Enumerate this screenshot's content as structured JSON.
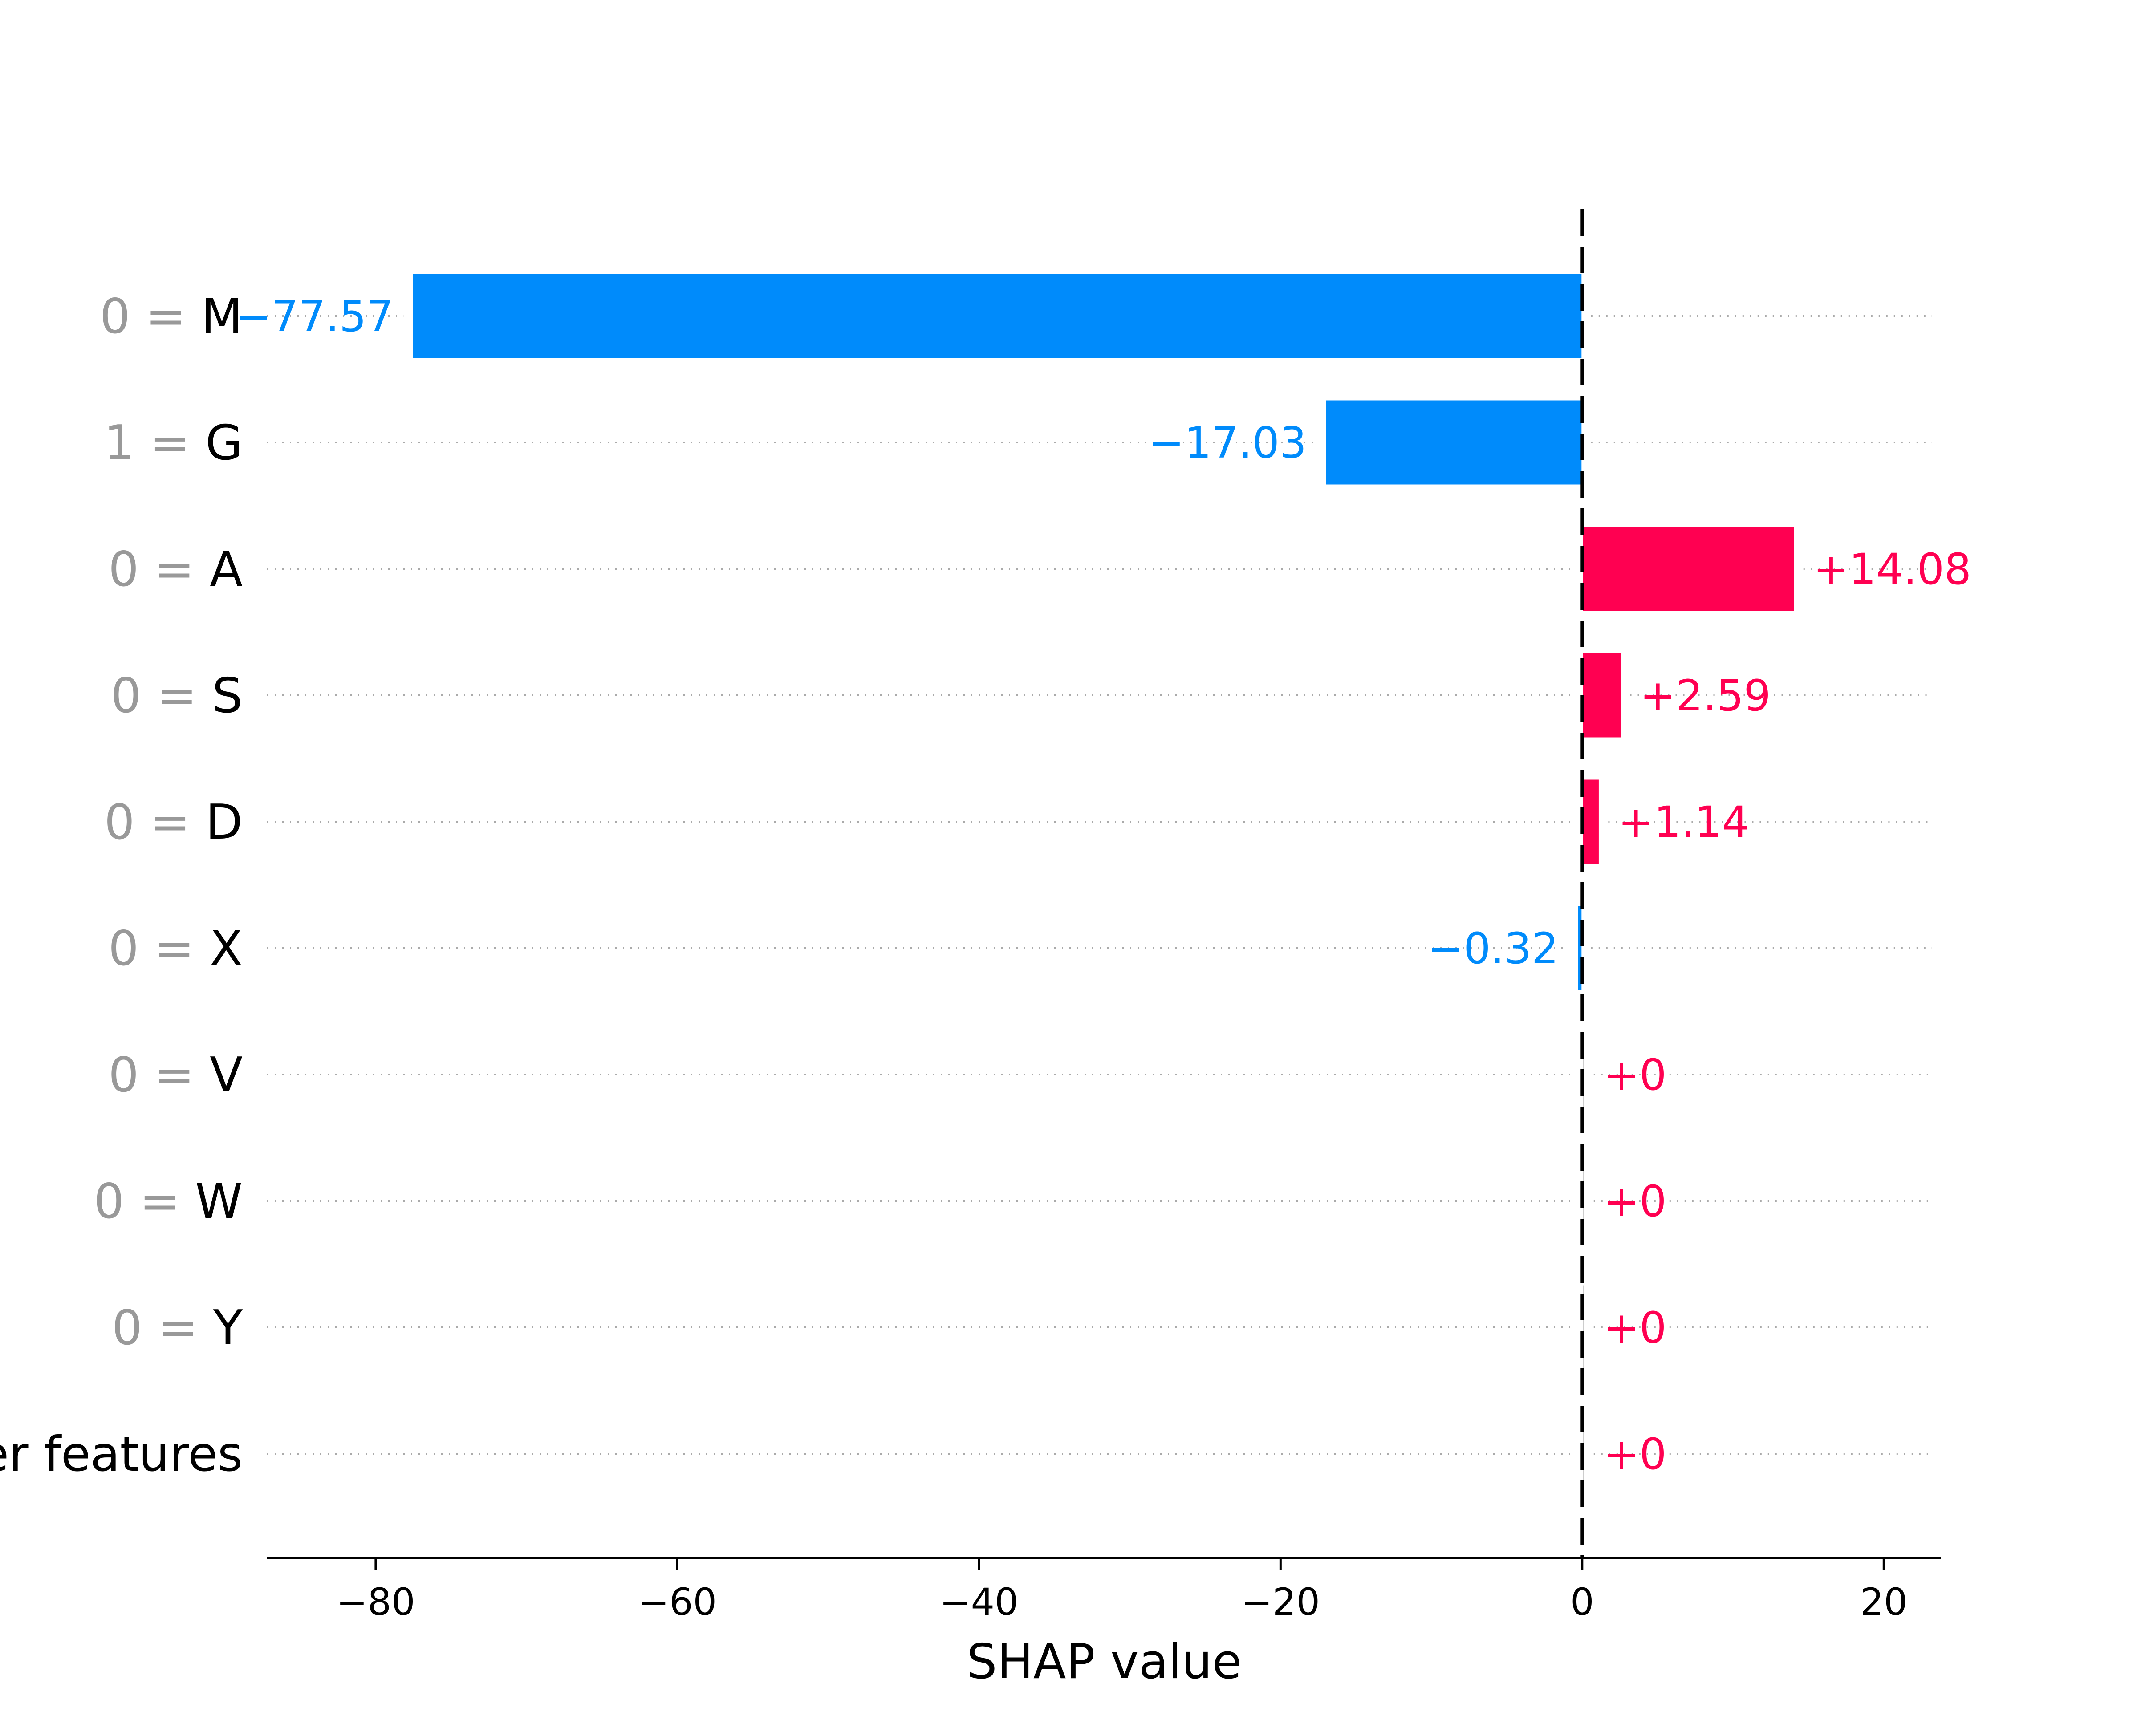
{
  "chart_data": {
    "type": "bar",
    "xlabel": "SHAP value",
    "xlim": [
      -87.2,
      23.8
    ],
    "xticks": [
      -80,
      -60,
      -40,
      -20,
      0,
      20
    ],
    "xtick_labels": [
      "−80",
      "−60",
      "−40",
      "−20",
      "0",
      "20"
    ],
    "baseline": 0,
    "grid": "dotted horizontal row guides",
    "colors": {
      "positive": "#ff0051",
      "negative": "#008bfb",
      "zero_bar": "#cccccc",
      "feature_value": "#999999"
    },
    "rows": [
      {
        "feature_value": "0",
        "feature": "M",
        "value": -77.57,
        "label": "−77.57"
      },
      {
        "feature_value": "1",
        "feature": "G",
        "value": -17.03,
        "label": "−17.03"
      },
      {
        "feature_value": "0",
        "feature": "A",
        "value": 14.08,
        "label": "+14.08"
      },
      {
        "feature_value": "0",
        "feature": "S",
        "value": 2.59,
        "label": "+2.59"
      },
      {
        "feature_value": "0",
        "feature": "D",
        "value": 1.14,
        "label": "+1.14"
      },
      {
        "feature_value": "0",
        "feature": "X",
        "value": -0.32,
        "label": "−0.32"
      },
      {
        "feature_value": "0",
        "feature": "V",
        "value": 0,
        "label": "+0"
      },
      {
        "feature_value": "0",
        "feature": "W",
        "value": 0,
        "label": "+0"
      },
      {
        "feature_value": "0",
        "feature": "Y",
        "value": 0,
        "label": "+0"
      },
      {
        "feature_value": "",
        "feature": "er features",
        "value": 0,
        "label": "+0"
      }
    ]
  }
}
